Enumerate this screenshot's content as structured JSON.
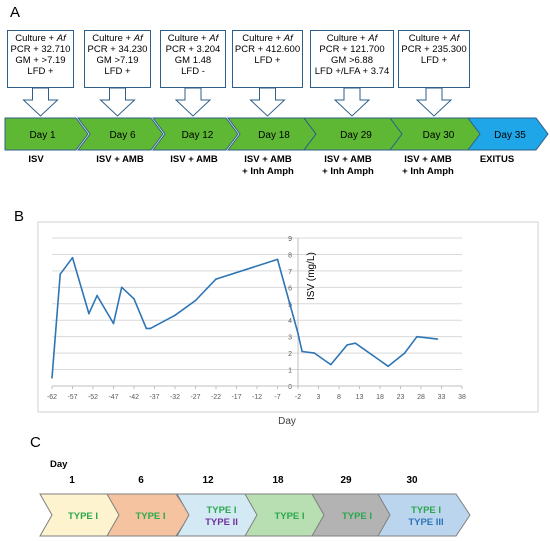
{
  "panels": {
    "a": "A",
    "b": "B",
    "c": "C"
  },
  "timeline_a": {
    "boxes": [
      {
        "culture": "Culture + ",
        "af": "Af",
        "pcr": "PCR + 32.710",
        "gm": "GM + >7.19",
        "lfd": "LFD +"
      },
      {
        "culture": "Culture + ",
        "af": "Af",
        "pcr": "PCR + 34.230",
        "gm": "GM >7.19",
        "lfd": "LFD +"
      },
      {
        "culture": "Culture + ",
        "af": "Af",
        "pcr": "PCR + 3.204",
        "gm": "GM 1.48",
        "lfd": "LFD -"
      },
      {
        "culture": "Culture + ",
        "af": "Af",
        "pcr": "PCR + 412.600",
        "gm": "LFD +",
        "lfd": ""
      },
      {
        "culture": "Culture + ",
        "af": "Af",
        "pcr": "PCR + 121.700",
        "gm": "GM >6.88",
        "lfd": "LFD +/LFA + 3.74"
      },
      {
        "culture": "Culture + ",
        "af": "Af",
        "pcr": "PCR + 235.300",
        "gm": "LFD +",
        "lfd": ""
      }
    ],
    "days": [
      "Day 1",
      "Day 6",
      "Day 12",
      "Day 18",
      "Day 29",
      "Day 30",
      "Day 35"
    ],
    "treatments": [
      {
        "l1": "ISV",
        "l2": ""
      },
      {
        "l1": "ISV + AMB",
        "l2": ""
      },
      {
        "l1": "ISV + AMB",
        "l2": ""
      },
      {
        "l1": "ISV + AMB",
        "l2": "+ Inh Amph"
      },
      {
        "l1": "ISV + AMB",
        "l2": "+ Inh Amph"
      },
      {
        "l1": "ISV + AMB",
        "l2": "+ Inh Amph"
      },
      {
        "l1": "EXITUS",
        "l2": ""
      }
    ],
    "colors": {
      "green": "#5fb833",
      "blue": "#1ea6e8",
      "box_border": "#2e5f8a"
    }
  },
  "chart_data": {
    "type": "line",
    "xlabel": "Day",
    "ylabel": "ISV (mg/L)",
    "xlim": [
      -62,
      38
    ],
    "ylim": [
      0,
      9
    ],
    "xticks": [
      "-62",
      "-57",
      "-52",
      "-47",
      "-42",
      "-37",
      "-32",
      "-27",
      "-22",
      "-17",
      "-12",
      "-7",
      "-2",
      "3",
      "8",
      "13",
      "18",
      "23",
      "28",
      "33",
      "38"
    ],
    "yticks": [
      "0",
      "1",
      "2",
      "3",
      "4",
      "5",
      "6",
      "7",
      "8",
      "9"
    ],
    "grid": true,
    "x": [
      -62,
      -60,
      -57,
      -53,
      -51,
      -47,
      -45,
      -42,
      -39,
      -38,
      -32,
      -27,
      -22,
      -7,
      -2,
      -1,
      2,
      6,
      10,
      12,
      20,
      24,
      27,
      32
    ],
    "values": [
      0.5,
      6.8,
      7.8,
      4.4,
      5.5,
      3.8,
      6.0,
      5.3,
      3.5,
      3.5,
      4.3,
      5.2,
      6.5,
      7.7,
      3.2,
      2.1,
      2.0,
      1.3,
      2.5,
      2.6,
      1.2,
      2.0,
      3.0,
      2.85
    ],
    "line_color": "#2e75b6"
  },
  "timeline_c": {
    "day_header": "Day",
    "days": [
      "1",
      "6",
      "12",
      "18",
      "29",
      "30"
    ],
    "chevrons": [
      {
        "l1": "TYPE I",
        "l2": "",
        "fill": "#fdf3cf",
        "c1": "#2aa84a",
        "c2": ""
      },
      {
        "l1": "TYPE I",
        "l2": "",
        "fill": "#f6c3a0",
        "c1": "#2aa84a",
        "c2": ""
      },
      {
        "l1": "TYPE I",
        "l2": "TYPE II",
        "fill": "#d3eaf4",
        "c1": "#2aa84a",
        "c2": "#7030a0"
      },
      {
        "l1": "TYPE I",
        "l2": "",
        "fill": "#b7dfb2",
        "c1": "#2aa84a",
        "c2": ""
      },
      {
        "l1": "TYPE I",
        "l2": "",
        "fill": "#b3b3b3",
        "c1": "#2aa84a",
        "c2": ""
      },
      {
        "l1": "TYPE I",
        "l2": "TYPE III",
        "fill": "#bcd5ee",
        "c1": "#2aa84a",
        "c2": "#2e75b6"
      }
    ]
  }
}
